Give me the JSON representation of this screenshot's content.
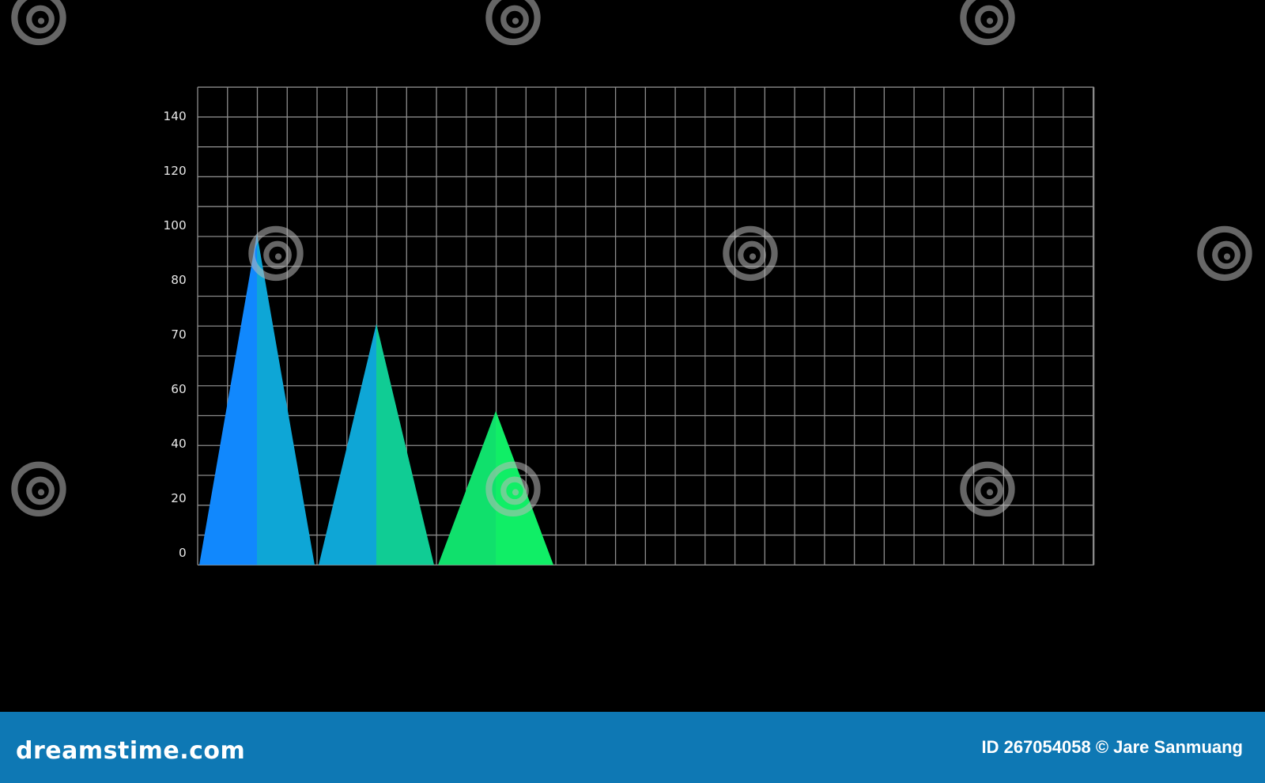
{
  "chart_data": {
    "type": "area",
    "title": "",
    "xlabel": "",
    "ylabel": "",
    "y_tick_labels": [
      "0",
      "20",
      "40",
      "60",
      "70",
      "80",
      "100",
      "120",
      "140"
    ],
    "grid": true,
    "legend": "none",
    "series": [
      {
        "values": [
          97
        ],
        "colors": [
          "#1188fd",
          "#0ea6d6"
        ]
      },
      {
        "values": [
          72
        ],
        "colors": [
          "#0ea6d6",
          "#10cc94"
        ]
      },
      {
        "values": [
          52
        ],
        "colors": [
          "#10e06c",
          "#10ee66"
        ]
      }
    ],
    "colors": {
      "background": "#000000",
      "grid": "#8a8a8a"
    }
  },
  "footer": {
    "brand": "dreamstime.com",
    "credit": "ID 267054058 © Jare Sanmuang",
    "background": "#0e78b4"
  }
}
